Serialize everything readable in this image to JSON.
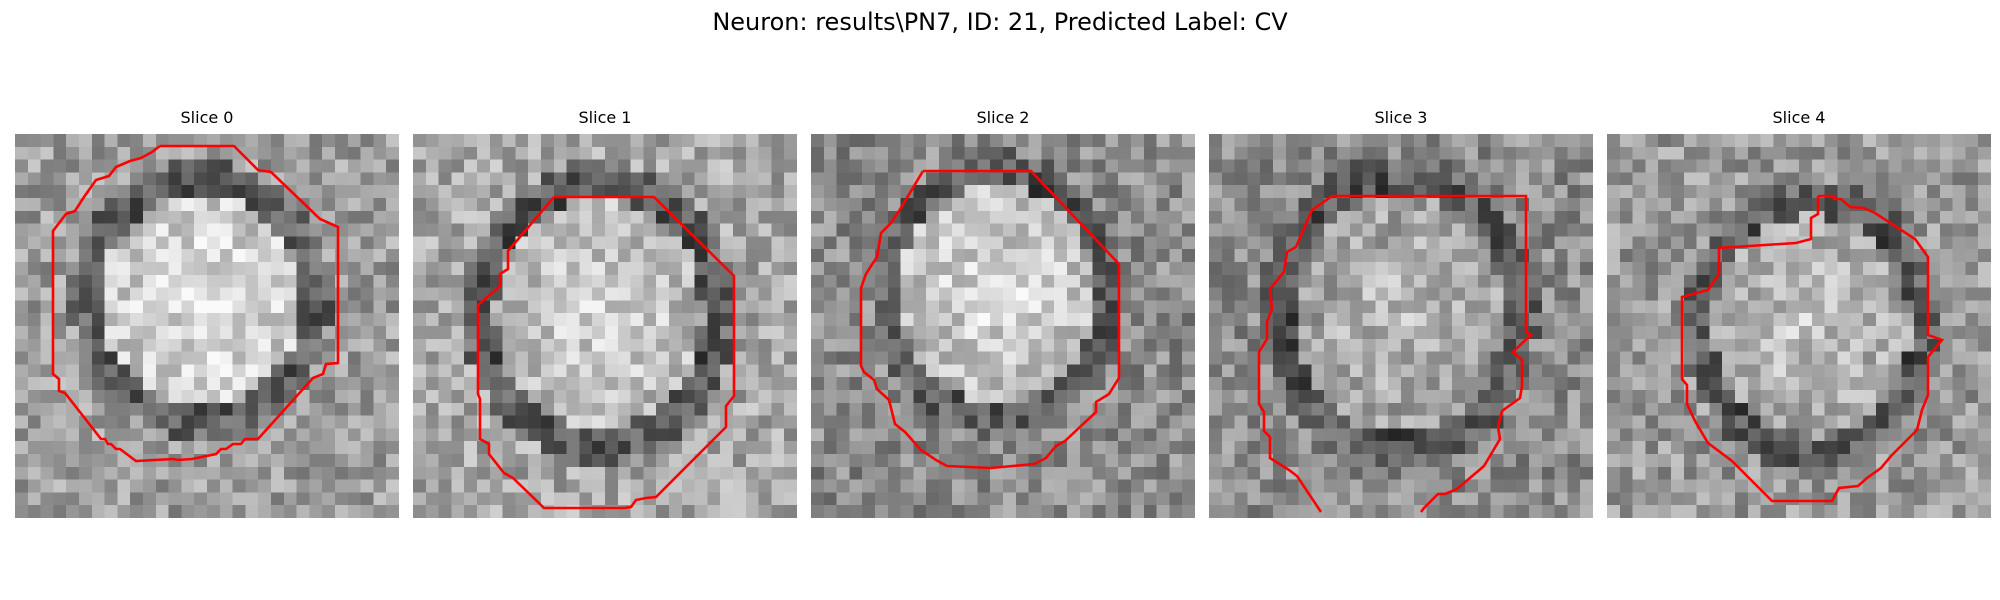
{
  "figure": {
    "title": "Neuron: results\\PN7, ID: 21, Predicted Label: CV",
    "contour_color": "#ff0000",
    "colormap": "gray",
    "slices": [
      {
        "label": "Slice 0",
        "seed": 11
      },
      {
        "label": "Slice 1",
        "seed": 23
      },
      {
        "label": "Slice 2",
        "seed": 37
      },
      {
        "label": "Slice 3",
        "seed": 51
      },
      {
        "label": "Slice 4",
        "seed": 73
      }
    ]
  }
}
